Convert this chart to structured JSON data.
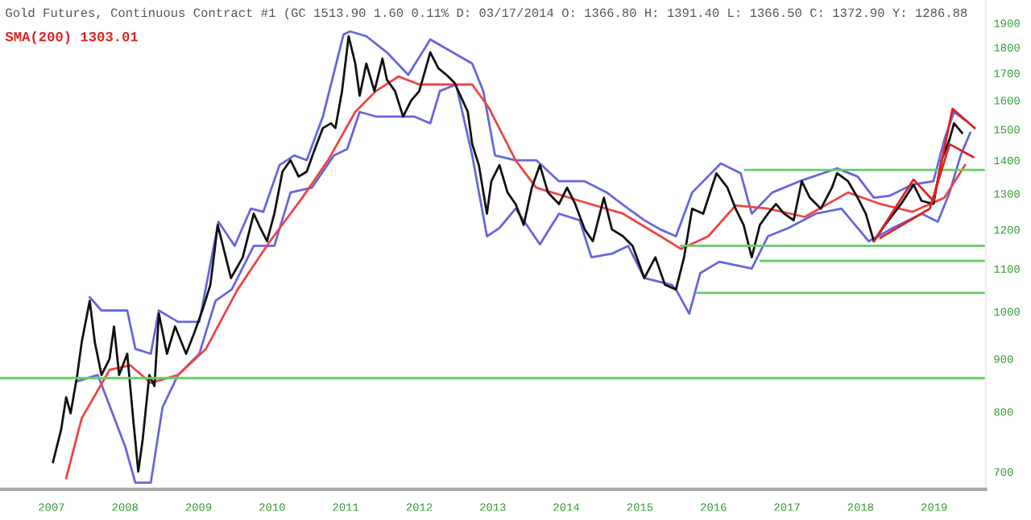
{
  "chart_data": {
    "type": "line",
    "title": "Gold Futures, Continuous Contract #1 (GC 1513.90 1.60 0.11% D: 03/17/2014 O: 1366.80 H: 1391.40 L: 1366.50 C: 1372.90 Y: 1286.88",
    "subtitle": "SMA(200) 1303.01",
    "log": "y",
    "xlim": [
      2006.3,
      2019.7
    ],
    "xticks": [
      2007,
      2008,
      2009,
      2010,
      2011,
      2012,
      2013,
      2014,
      2015,
      2016,
      2017,
      2018,
      2019
    ],
    "ylim": [
      673,
      2000
    ],
    "yticks": [
      700,
      800,
      900,
      1000,
      1100,
      1200,
      1300,
      1400,
      1500,
      1600,
      1700,
      1800,
      1900
    ],
    "grid": false,
    "legend": false,
    "marker": "none",
    "line_style": "solid",
    "ref_lines": [
      {
        "axis": "y",
        "value": 862,
        "color": "#66cc66"
      }
    ],
    "series": [
      {
        "color": "#6666dd",
        "x": [
          2007.52,
          2007.68,
          2008.03,
          2008.14,
          2008.35,
          2008.46,
          2008.72,
          2009.01,
          2009.27,
          2009.49,
          2009.71,
          2009.88,
          2010.1,
          2010.3,
          2010.47,
          2010.69,
          2010.97,
          2011.06,
          2011.28,
          2011.56,
          2011.85,
          2012.15,
          2012.72,
          2012.87,
          2013.03,
          2013.31,
          2013.59,
          2013.9,
          2014.25,
          2014.55,
          2014.84,
          2015.06,
          2015.28,
          2015.49,
          2015.71,
          2016.1,
          2016.37,
          2016.52,
          2016.8,
          2017.17,
          2017.68,
          2017.96,
          2018.18,
          2018.4,
          2018.7,
          2018.99,
          2019.14,
          2019.27,
          2019.42
        ],
        "values": [
          1032,
          1002,
          1002,
          920,
          910,
          1002,
          977,
          977,
          1221,
          1157,
          1257,
          1248,
          1385,
          1415,
          1400,
          1543,
          1852,
          1865,
          1845,
          1780,
          1693,
          1832,
          1736,
          1633,
          1415,
          1400,
          1400,
          1336,
          1336,
          1303,
          1257,
          1225,
          1200,
          1182,
          1303,
          1390,
          1360,
          1243,
          1303,
          1336,
          1375,
          1350,
          1288,
          1294,
          1326,
          1336,
          1467,
          1559,
          1531
        ]
      },
      {
        "color": "#6666dd",
        "x": [
          2007.35,
          2007.63,
          2008.0,
          2008.14,
          2008.35,
          2008.51,
          2008.72,
          2009.01,
          2009.23,
          2009.45,
          2009.75,
          2010.03,
          2010.25,
          2010.54,
          2010.84,
          2011.02,
          2011.19,
          2011.41,
          2011.72,
          2011.93,
          2012.15,
          2012.28,
          2012.5,
          2012.72,
          2012.92,
          2013.09,
          2013.31,
          2013.64,
          2013.9,
          2014.18,
          2014.34,
          2014.62,
          2014.84,
          2015.06,
          2015.43,
          2015.49,
          2015.67,
          2015.82,
          2016.08,
          2016.52,
          2016.74,
          2017.02,
          2017.39,
          2017.74,
          2018.11,
          2018.4,
          2018.83,
          2019.05,
          2019.21,
          2019.36,
          2019.49
        ],
        "values": [
          856,
          868,
          741,
          683,
          683,
          808,
          868,
          910,
          1024,
          1050,
          1157,
          1157,
          1303,
          1317,
          1415,
          1435,
          1559,
          1543,
          1543,
          1543,
          1520,
          1633,
          1657,
          1415,
          1182,
          1204,
          1257,
          1161,
          1243,
          1225,
          1128,
          1137,
          1157,
          1077,
          1061,
          1050,
          995,
          1089,
          1117,
          1100,
          1182,
          1204,
          1243,
          1257,
          1169,
          1200,
          1243,
          1221,
          1303,
          1415,
          1488
        ]
      },
      {
        "color": "#ee4444",
        "x": [
          2007.2,
          2007.41,
          2007.79,
          2008.07,
          2008.35,
          2008.72,
          2009.1,
          2009.53,
          2009.97,
          2010.41,
          2010.76,
          2011.13,
          2011.41,
          2011.72,
          2012.0,
          2012.28,
          2012.72,
          2012.94,
          2013.31,
          2013.59,
          2014.18,
          2014.77,
          2015.28,
          2015.56,
          2015.93,
          2016.3,
          2016.74,
          2017.24,
          2017.83,
          2018.27,
          2018.7,
          2019.14,
          2019.42
        ],
        "values": [
          690,
          788,
          878,
          887,
          853,
          868,
          920,
          1050,
          1169,
          1288,
          1400,
          1559,
          1633,
          1687,
          1657,
          1657,
          1657,
          1576,
          1400,
          1317,
          1279,
          1243,
          1182,
          1149,
          1182,
          1266,
          1257,
          1234,
          1303,
          1270,
          1248,
          1288,
          1385
        ]
      },
      {
        "color": "#111111",
        "x": [
          2007.02,
          2007.13,
          2007.2,
          2007.26,
          2007.35,
          2007.41,
          2007.52,
          2007.59,
          2007.68,
          2007.79,
          2007.85,
          2007.92,
          2008.03,
          2008.11,
          2008.18,
          2008.24,
          2008.33,
          2008.4,
          2008.46,
          2008.57,
          2008.68,
          2008.83,
          2008.94,
          2009.05,
          2009.16,
          2009.26,
          2009.37,
          2009.44,
          2009.6,
          2009.75,
          2009.82,
          2009.93,
          2010.03,
          2010.14,
          2010.25,
          2010.36,
          2010.47,
          2010.58,
          2010.69,
          2010.8,
          2010.86,
          2010.95,
          2011.04,
          2011.13,
          2011.19,
          2011.28,
          2011.39,
          2011.5,
          2011.56,
          2011.67,
          2011.78,
          2011.89,
          2012.0,
          2012.15,
          2012.26,
          2012.37,
          2012.48,
          2012.59,
          2012.66,
          2012.72,
          2012.81,
          2012.92,
          2012.98,
          2013.09,
          2013.2,
          2013.31,
          2013.42,
          2013.53,
          2013.64,
          2013.75,
          2013.9,
          2014.01,
          2014.12,
          2014.25,
          2014.36,
          2014.51,
          2014.62,
          2014.77,
          2014.9,
          2015.06,
          2015.21,
          2015.34,
          2015.49,
          2015.6,
          2015.71,
          2015.86,
          2016.04,
          2016.19,
          2016.3,
          2016.41,
          2016.52,
          2016.63,
          2016.74,
          2016.85,
          2016.96,
          2017.09,
          2017.2,
          2017.31,
          2017.46,
          2017.61,
          2017.68,
          2017.83,
          2017.96,
          2018.07,
          2018.18,
          2018.33,
          2018.55,
          2018.72,
          2018.83,
          2018.99,
          2019.1,
          2019.21,
          2019.27,
          2019.38
        ],
        "values": [
          715,
          768,
          826,
          797,
          868,
          933,
          1024,
          933,
          868,
          900,
          967,
          868,
          910,
          788,
          700,
          752,
          868,
          847,
          995,
          910,
          967,
          910,
          953,
          1002,
          1061,
          1212,
          1128,
          1077,
          1128,
          1243,
          1212,
          1169,
          1243,
          1365,
          1400,
          1350,
          1365,
          1435,
          1504,
          1520,
          1504,
          1633,
          1845,
          1736,
          1616,
          1736,
          1633,
          1755,
          1675,
          1633,
          1543,
          1599,
          1633,
          1780,
          1718,
          1693,
          1663,
          1599,
          1559,
          1451,
          1385,
          1243,
          1336,
          1385,
          1303,
          1270,
          1212,
          1317,
          1385,
          1303,
          1270,
          1317,
          1270,
          1200,
          1169,
          1288,
          1200,
          1182,
          1157,
          1077,
          1128,
          1061,
          1050,
          1128,
          1257,
          1243,
          1360,
          1317,
          1257,
          1212,
          1128,
          1212,
          1243,
          1270,
          1243,
          1225,
          1336,
          1288,
          1257,
          1317,
          1360,
          1336,
          1288,
          1243,
          1169,
          1212,
          1270,
          1326,
          1279,
          1270,
          1400,
          1467,
          1520,
          1488
        ]
      },
      {
        "color": "#66cc66",
        "x": [
          2016.43,
          2019.7
        ],
        "values": [
          1370,
          1370
        ]
      },
      {
        "color": "#66cc66",
        "x": [
          2015.56,
          2019.7
        ],
        "values": [
          1157,
          1157
        ]
      },
      {
        "color": "#66cc66",
        "x": [
          2016.64,
          2019.7
        ],
        "values": [
          1119,
          1119
        ]
      },
      {
        "color": "#66cc66",
        "x": [
          2015.78,
          2019.7
        ],
        "values": [
          1042,
          1042
        ]
      },
      {
        "color": "#dd2222",
        "x": [
          2018.18,
          2018.72,
          2018.99,
          2019.25,
          2019.55
        ],
        "values": [
          1169,
          1341,
          1279,
          1570,
          1504
        ]
      },
      {
        "color": "#dd2222",
        "x": [
          2018.27,
          2018.94,
          2019.21,
          2019.53
        ],
        "values": [
          1178,
          1257,
          1451,
          1410
        ]
      }
    ]
  }
}
